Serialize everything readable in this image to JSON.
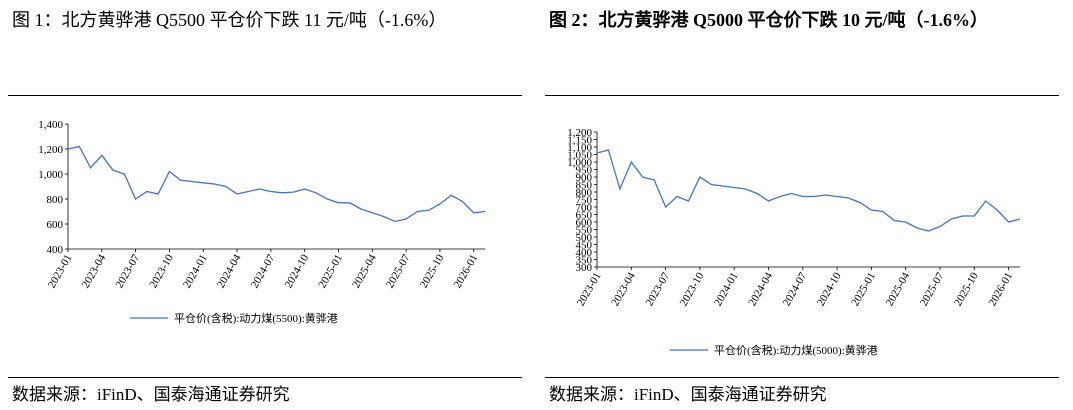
{
  "chart_data": [
    {
      "type": "line",
      "title": "图 1：北方黄骅港 Q5500 平仓价下跌 11 元/吨（-1.6%）",
      "source": "数据来源：iFinD、国泰海通证券研究",
      "x": [
        "2023-01",
        "2023-02",
        "2023-03",
        "2023-04",
        "2023-05",
        "2023-06",
        "2023-07",
        "2023-08",
        "2023-09",
        "2023-10",
        "2023-11",
        "2023-12",
        "2024-01",
        "2024-02",
        "2024-03",
        "2024-04",
        "2024-05",
        "2024-06",
        "2024-07",
        "2024-08",
        "2024-09",
        "2024-10",
        "2024-11",
        "2024-12",
        "2025-01",
        "2025-02",
        "2025-03",
        "2025-04",
        "2025-05",
        "2025-06",
        "2025-07",
        "2025-08",
        "2025-09",
        "2025-10",
        "2025-11",
        "2025-12",
        "2026-01",
        "2026-02"
      ],
      "xticks": [
        "2023-01",
        "2023-04",
        "2023-07",
        "2023-10",
        "2024-01",
        "2024-04",
        "2024-07",
        "2024-10",
        "2025-01",
        "2025-04",
        "2025-07",
        "2025-10",
        "2026-01"
      ],
      "series": [
        {
          "name": "平仓价(含税):动力煤(5500):黄骅港",
          "color": "#4472c4",
          "values": [
            1200,
            1220,
            1050,
            1150,
            1030,
            1000,
            800,
            860,
            840,
            1020,
            950,
            940,
            930,
            920,
            900,
            840,
            860,
            880,
            860,
            850,
            855,
            880,
            850,
            800,
            770,
            770,
            720,
            690,
            660,
            620,
            640,
            700,
            710,
            760,
            830,
            780,
            690,
            700
          ]
        }
      ],
      "ylim": [
        400,
        1400
      ],
      "yticks": [
        400,
        600,
        800,
        {
          "value": 1000,
          "label": "1,000"
        },
        {
          "value": 1200,
          "label": "1,200"
        },
        {
          "value": 1400,
          "label": "1,400"
        }
      ]
    },
    {
      "type": "line",
      "title": "图 2：北方黄骅港 Q5000 平仓价下跌 10 元/吨（-1.6%）",
      "source": "数据来源：iFinD、国泰海通证券研究",
      "x": [
        "2023-01",
        "2023-02",
        "2023-03",
        "2023-04",
        "2023-05",
        "2023-06",
        "2023-07",
        "2023-08",
        "2023-09",
        "2023-10",
        "2023-11",
        "2023-12",
        "2024-01",
        "2024-02",
        "2024-03",
        "2024-04",
        "2024-05",
        "2024-06",
        "2024-07",
        "2024-08",
        "2024-09",
        "2024-10",
        "2024-11",
        "2024-12",
        "2025-01",
        "2025-02",
        "2025-03",
        "2025-04",
        "2025-05",
        "2025-06",
        "2025-07",
        "2025-08",
        "2025-09",
        "2025-10",
        "2025-11",
        "2025-12",
        "2026-01",
        "2026-02"
      ],
      "xticks": [
        "2023-01",
        "2023-04",
        "2023-07",
        "2023-10",
        "2024-01",
        "2024-04",
        "2024-07",
        "2024-10",
        "2025-01",
        "2025-04",
        "2025-07",
        "2025-10",
        "2026-01"
      ],
      "series": [
        {
          "name": "平仓价(含税):动力煤(5000):黄骅港",
          "color": "#4472c4",
          "values": [
            1060,
            1080,
            820,
            1000,
            900,
            880,
            700,
            770,
            740,
            900,
            850,
            840,
            830,
            820,
            790,
            740,
            770,
            790,
            770,
            770,
            780,
            770,
            760,
            730,
            680,
            670,
            610,
            600,
            560,
            540,
            570,
            620,
            640,
            640,
            740,
            680,
            600,
            620
          ]
        }
      ],
      "ylim": [
        300,
        1200
      ],
      "yticks": [
        300,
        350,
        400,
        450,
        500,
        550,
        600,
        650,
        700,
        750,
        800,
        850,
        900,
        950,
        {
          "value": 1000,
          "label": "1,000"
        },
        {
          "value": 1050,
          "label": "1,050"
        },
        {
          "value": 1100,
          "label": "1,100"
        },
        {
          "value": 1150,
          "label": "1,150"
        },
        {
          "value": 1200,
          "label": "1,200"
        }
      ]
    }
  ]
}
